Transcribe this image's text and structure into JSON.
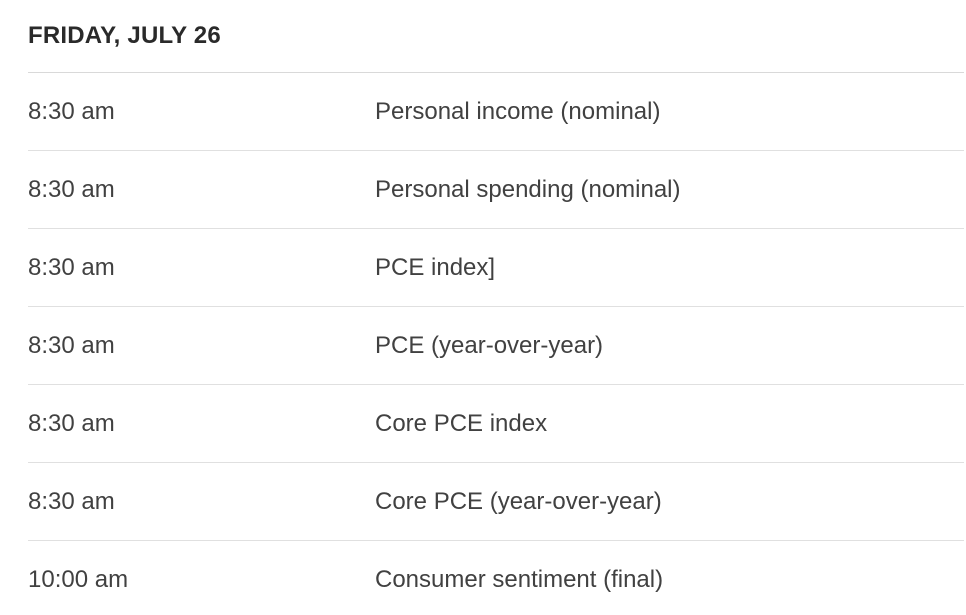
{
  "page": {
    "background_color": "#ffffff",
    "divider_color": "#e0e0e0",
    "title_color": "#2a2a2a",
    "text_color": "#414141"
  },
  "calendar": {
    "day_header": "FRIDAY, JULY 26",
    "rows": [
      {
        "time": "8:30 am",
        "report": "Personal income (nominal)"
      },
      {
        "time": "8:30 am",
        "report": "Personal spending (nominal)"
      },
      {
        "time": "8:30 am",
        "report": "PCE index]"
      },
      {
        "time": "8:30 am",
        "report": "PCE (year-over-year)"
      },
      {
        "time": "8:30 am",
        "report": "Core PCE index"
      },
      {
        "time": "8:30 am",
        "report": "Core PCE (year-over-year)"
      },
      {
        "time": "10:00 am",
        "report": "Consumer sentiment (final)"
      }
    ]
  }
}
